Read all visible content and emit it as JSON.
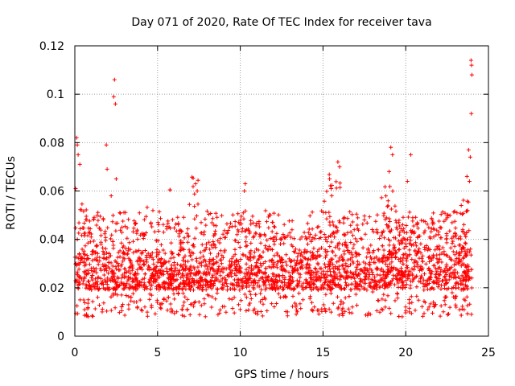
{
  "chart_data": {
    "type": "scatter",
    "title": "Day 071 of 2020, Rate Of TEC Index for receiver tava",
    "xlabel": "GPS time / hours",
    "ylabel": "ROTI / TECUs",
    "xlim": [
      0,
      25
    ],
    "ylim": [
      0,
      0.12
    ],
    "xticks": [
      "0",
      "5",
      "10",
      "15",
      "20",
      "25"
    ],
    "xtick_values": [
      0,
      5,
      10,
      15,
      20,
      25
    ],
    "yticks": [
      "0",
      "0.02",
      "0.04",
      "0.06",
      "0.08",
      "0.1",
      "0.12"
    ],
    "ytick_values": [
      0,
      0.02,
      0.04,
      0.06,
      0.08,
      0.1,
      0.12
    ],
    "grid": true,
    "marker": "+",
    "series": [
      {
        "name": "ROTI",
        "color": "#ff0000",
        "points_description": "dense cloud of ~30-second ROTI samples over 0-24 h, mostly 0.008-0.045 TECU/s",
        "notable_points": [
          [
            0.1,
            0.082
          ],
          [
            0.15,
            0.079
          ],
          [
            0.2,
            0.075
          ],
          [
            0.3,
            0.071
          ],
          [
            0.05,
            0.061
          ],
          [
            1.9,
            0.079
          ],
          [
            1.95,
            0.069
          ],
          [
            2.4,
            0.106
          ],
          [
            2.35,
            0.099
          ],
          [
            2.45,
            0.096
          ],
          [
            2.5,
            0.065
          ],
          [
            2.2,
            0.058
          ],
          [
            7.3,
            0.063
          ],
          [
            7.4,
            0.06
          ],
          [
            10.3,
            0.063
          ],
          [
            10.25,
            0.06
          ],
          [
            15.4,
            0.065
          ],
          [
            15.5,
            0.061
          ],
          [
            15.9,
            0.072
          ],
          [
            16.0,
            0.07
          ],
          [
            19.1,
            0.078
          ],
          [
            19.2,
            0.075
          ],
          [
            19.0,
            0.068
          ],
          [
            20.3,
            0.075
          ],
          [
            20.1,
            0.064
          ],
          [
            23.8,
            0.077
          ],
          [
            23.9,
            0.074
          ],
          [
            23.95,
            0.114
          ],
          [
            23.98,
            0.112
          ],
          [
            24.0,
            0.108
          ],
          [
            23.97,
            0.092
          ],
          [
            23.7,
            0.066
          ],
          [
            23.85,
            0.064
          ]
        ]
      }
    ]
  }
}
